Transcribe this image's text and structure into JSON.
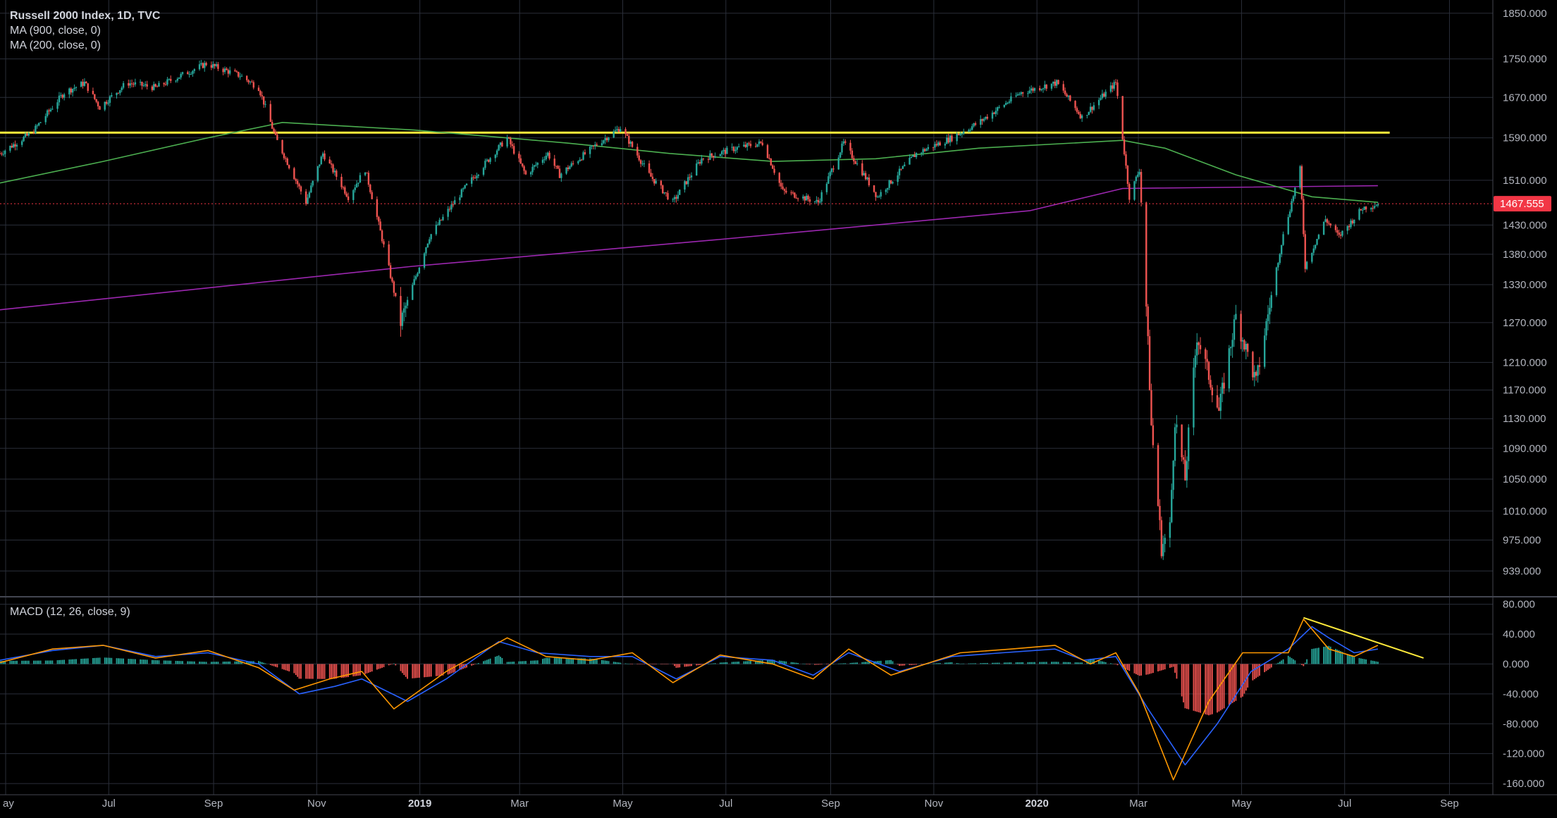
{
  "header": {
    "symbol": "Russell 2000 Index, 1D, TVC",
    "ma1": "MA (900, close, 0)",
    "ma2": "MA (200, close, 0)",
    "macd": "MACD (12, 26, close, 9)"
  },
  "current_price": {
    "label": "1467.555",
    "value": 1467.555,
    "color": "#f23645"
  },
  "colors": {
    "up": "#26a69a",
    "down": "#ef5350",
    "grid": "#2a2e39",
    "ma900": "#9c27b0",
    "ma200": "#4caf50",
    "support": "#ffeb3b",
    "macd_line": "#2962ff",
    "signal_line": "#ff9800",
    "trend": "#ffeb3b"
  },
  "chart_data": [
    {
      "type": "candlestick",
      "title": "Russell 2000 Index, 1D, TVC",
      "ylim": [
        910,
        1880
      ],
      "price_axis": [
        "1850.000",
        "1750.000",
        "1670.000",
        "1590.000",
        "1510.000",
        "1430.000",
        "1380.000",
        "1330.000",
        "1270.000",
        "1210.000",
        "1170.000",
        "1130.000",
        "1090.000",
        "1050.000",
        "1010.000",
        "975.000",
        "939.000"
      ],
      "time_axis": [
        "ay",
        "Jul",
        "Sep",
        "Nov",
        "2019",
        "Mar",
        "May",
        "Jul",
        "Sep",
        "Nov",
        "2020",
        "Mar",
        "May",
        "Jul",
        "Sep"
      ],
      "time_axis_bold": [
        false,
        false,
        false,
        false,
        true,
        false,
        false,
        false,
        false,
        false,
        true,
        false,
        false,
        false,
        false
      ],
      "x_range": [
        "2018-05-01",
        "2020-09-30"
      ],
      "price_path": [
        [
          "2018-05-01",
          1560
        ],
        [
          "2018-05-20",
          1600
        ],
        [
          "2018-06-08",
          1680
        ],
        [
          "2018-06-20",
          1700
        ],
        [
          "2018-06-29",
          1650
        ],
        [
          "2018-07-15",
          1700
        ],
        [
          "2018-08-01",
          1690
        ],
        [
          "2018-08-31",
          1740
        ],
        [
          "2018-09-20",
          1715
        ],
        [
          "2018-10-01",
          1690
        ],
        [
          "2018-10-11",
          1590
        ],
        [
          "2018-10-29",
          1470
        ],
        [
          "2018-11-08",
          1560
        ],
        [
          "2018-11-23",
          1480
        ],
        [
          "2018-12-03",
          1530
        ],
        [
          "2018-12-24",
          1270
        ],
        [
          "2019-01-10",
          1410
        ],
        [
          "2019-02-01",
          1500
        ],
        [
          "2019-02-25",
          1590
        ],
        [
          "2019-03-08",
          1520
        ],
        [
          "2019-03-21",
          1560
        ],
        [
          "2019-03-28",
          1520
        ],
        [
          "2019-04-20",
          1580
        ],
        [
          "2019-05-03",
          1610
        ],
        [
          "2019-05-20",
          1520
        ],
        [
          "2019-06-03",
          1470
        ],
        [
          "2019-06-20",
          1550
        ],
        [
          "2019-07-10",
          1570
        ],
        [
          "2019-07-26",
          1580
        ],
        [
          "2019-08-07",
          1490
        ],
        [
          "2019-08-28",
          1470
        ],
        [
          "2019-09-12",
          1580
        ],
        [
          "2019-10-02",
          1480
        ],
        [
          "2019-10-25",
          1560
        ],
        [
          "2019-11-15",
          1590
        ],
        [
          "2019-12-01",
          1620
        ],
        [
          "2019-12-26",
          1680
        ],
        [
          "2020-01-16",
          1700
        ],
        [
          "2020-01-31",
          1630
        ],
        [
          "2020-02-20",
          1700
        ],
        [
          "2020-02-28",
          1480
        ],
        [
          "2020-03-05",
          1530
        ],
        [
          "2020-03-12",
          1120
        ],
        [
          "2020-03-18",
          966
        ],
        [
          "2020-03-23",
          990
        ],
        [
          "2020-03-26",
          1130
        ],
        [
          "2020-04-01",
          1050
        ],
        [
          "2020-04-08",
          1250
        ],
        [
          "2020-04-21",
          1140
        ],
        [
          "2020-05-01",
          1280
        ],
        [
          "2020-05-13",
          1180
        ],
        [
          "2020-05-28",
          1400
        ],
        [
          "2020-06-08",
          1530
        ],
        [
          "2020-06-11",
          1360
        ],
        [
          "2020-06-23",
          1440
        ],
        [
          "2020-07-01",
          1410
        ],
        [
          "2020-07-15",
          1460
        ],
        [
          "2020-07-24",
          1467.555
        ]
      ],
      "ma200_path": [
        [
          "2018-05-01",
          1505
        ],
        [
          "2018-07-01",
          1545
        ],
        [
          "2018-09-01",
          1590
        ],
        [
          "2018-10-15",
          1620
        ],
        [
          "2019-01-01",
          1605
        ],
        [
          "2019-04-01",
          1580
        ],
        [
          "2019-06-01",
          1560
        ],
        [
          "2019-08-01",
          1545
        ],
        [
          "2019-10-01",
          1550
        ],
        [
          "2019-12-01",
          1570
        ],
        [
          "2020-02-24",
          1585
        ],
        [
          "2020-03-20",
          1570
        ],
        [
          "2020-05-01",
          1520
        ],
        [
          "2020-06-15",
          1480
        ],
        [
          "2020-07-24",
          1470
        ]
      ],
      "ma900_path": [
        [
          "2018-05-01",
          1290
        ],
        [
          "2018-12-31",
          1360
        ],
        [
          "2019-06-30",
          1405
        ],
        [
          "2019-12-31",
          1455
        ],
        [
          "2020-02-24",
          1495
        ],
        [
          "2020-07-24",
          1500
        ]
      ],
      "support_line": {
        "value": 1600,
        "from": "2018-05-01",
        "to": "2020-07-31"
      }
    },
    {
      "type": "macd",
      "title": "MACD (12, 26, close, 9)",
      "ylim": [
        -175,
        90
      ],
      "axis_labels": [
        "80.000",
        "40.000",
        "0.000",
        "-40.000",
        "-80.000",
        "-120.000",
        "-160.000"
      ],
      "macd_path": [
        [
          "2018-05-01",
          5
        ],
        [
          "2018-06-01",
          18
        ],
        [
          "2018-07-01",
          25
        ],
        [
          "2018-08-01",
          10
        ],
        [
          "2018-09-01",
          15
        ],
        [
          "2018-10-01",
          0
        ],
        [
          "2018-10-25",
          -40
        ],
        [
          "2018-11-15",
          -30
        ],
        [
          "2018-12-01",
          -20
        ],
        [
          "2018-12-28",
          -50
        ],
        [
          "2019-01-20",
          -20
        ],
        [
          "2019-02-20",
          30
        ],
        [
          "2019-03-15",
          15
        ],
        [
          "2019-04-15",
          10
        ],
        [
          "2019-05-10",
          10
        ],
        [
          "2019-06-05",
          -20
        ],
        [
          "2019-07-01",
          10
        ],
        [
          "2019-08-01",
          5
        ],
        [
          "2019-08-25",
          -15
        ],
        [
          "2019-09-15",
          15
        ],
        [
          "2019-10-15",
          -10
        ],
        [
          "2019-11-15",
          10
        ],
        [
          "2019-12-15",
          15
        ],
        [
          "2020-01-15",
          20
        ],
        [
          "2020-02-01",
          5
        ],
        [
          "2020-02-20",
          10
        ],
        [
          "2020-03-10",
          -60
        ],
        [
          "2020-04-01",
          -135
        ],
        [
          "2020-04-20",
          -80
        ],
        [
          "2020-05-10",
          -10
        ],
        [
          "2020-06-01",
          20
        ],
        [
          "2020-06-15",
          50
        ],
        [
          "2020-06-25",
          35
        ],
        [
          "2020-07-10",
          15
        ],
        [
          "2020-07-24",
          20
        ]
      ],
      "signal_path": [
        [
          "2018-05-01",
          2
        ],
        [
          "2018-06-01",
          20
        ],
        [
          "2018-07-01",
          25
        ],
        [
          "2018-08-01",
          8
        ],
        [
          "2018-09-01",
          18
        ],
        [
          "2018-10-01",
          -5
        ],
        [
          "2018-10-22",
          -35
        ],
        [
          "2018-11-12",
          -20
        ],
        [
          "2018-12-01",
          -10
        ],
        [
          "2018-12-20",
          -60
        ],
        [
          "2019-01-20",
          -10
        ],
        [
          "2019-02-25",
          35
        ],
        [
          "2019-03-20",
          10
        ],
        [
          "2019-04-15",
          5
        ],
        [
          "2019-05-10",
          15
        ],
        [
          "2019-06-03",
          -25
        ],
        [
          "2019-07-01",
          12
        ],
        [
          "2019-08-01",
          0
        ],
        [
          "2019-08-25",
          -20
        ],
        [
          "2019-09-15",
          20
        ],
        [
          "2019-10-10",
          -15
        ],
        [
          "2019-11-20",
          15
        ],
        [
          "2019-12-20",
          20
        ],
        [
          "2020-01-15",
          25
        ],
        [
          "2020-02-05",
          0
        ],
        [
          "2020-02-20",
          15
        ],
        [
          "2020-03-05",
          -40
        ],
        [
          "2020-03-25",
          -155
        ],
        [
          "2020-04-15",
          -50
        ],
        [
          "2020-05-05",
          15
        ],
        [
          "2020-06-01",
          15
        ],
        [
          "2020-06-10",
          60
        ],
        [
          "2020-06-25",
          20
        ],
        [
          "2020-07-10",
          10
        ],
        [
          "2020-07-24",
          25
        ]
      ],
      "trendline": {
        "from": [
          "2020-06-10",
          62
        ],
        "to": [
          "2020-08-20",
          8
        ]
      }
    }
  ]
}
